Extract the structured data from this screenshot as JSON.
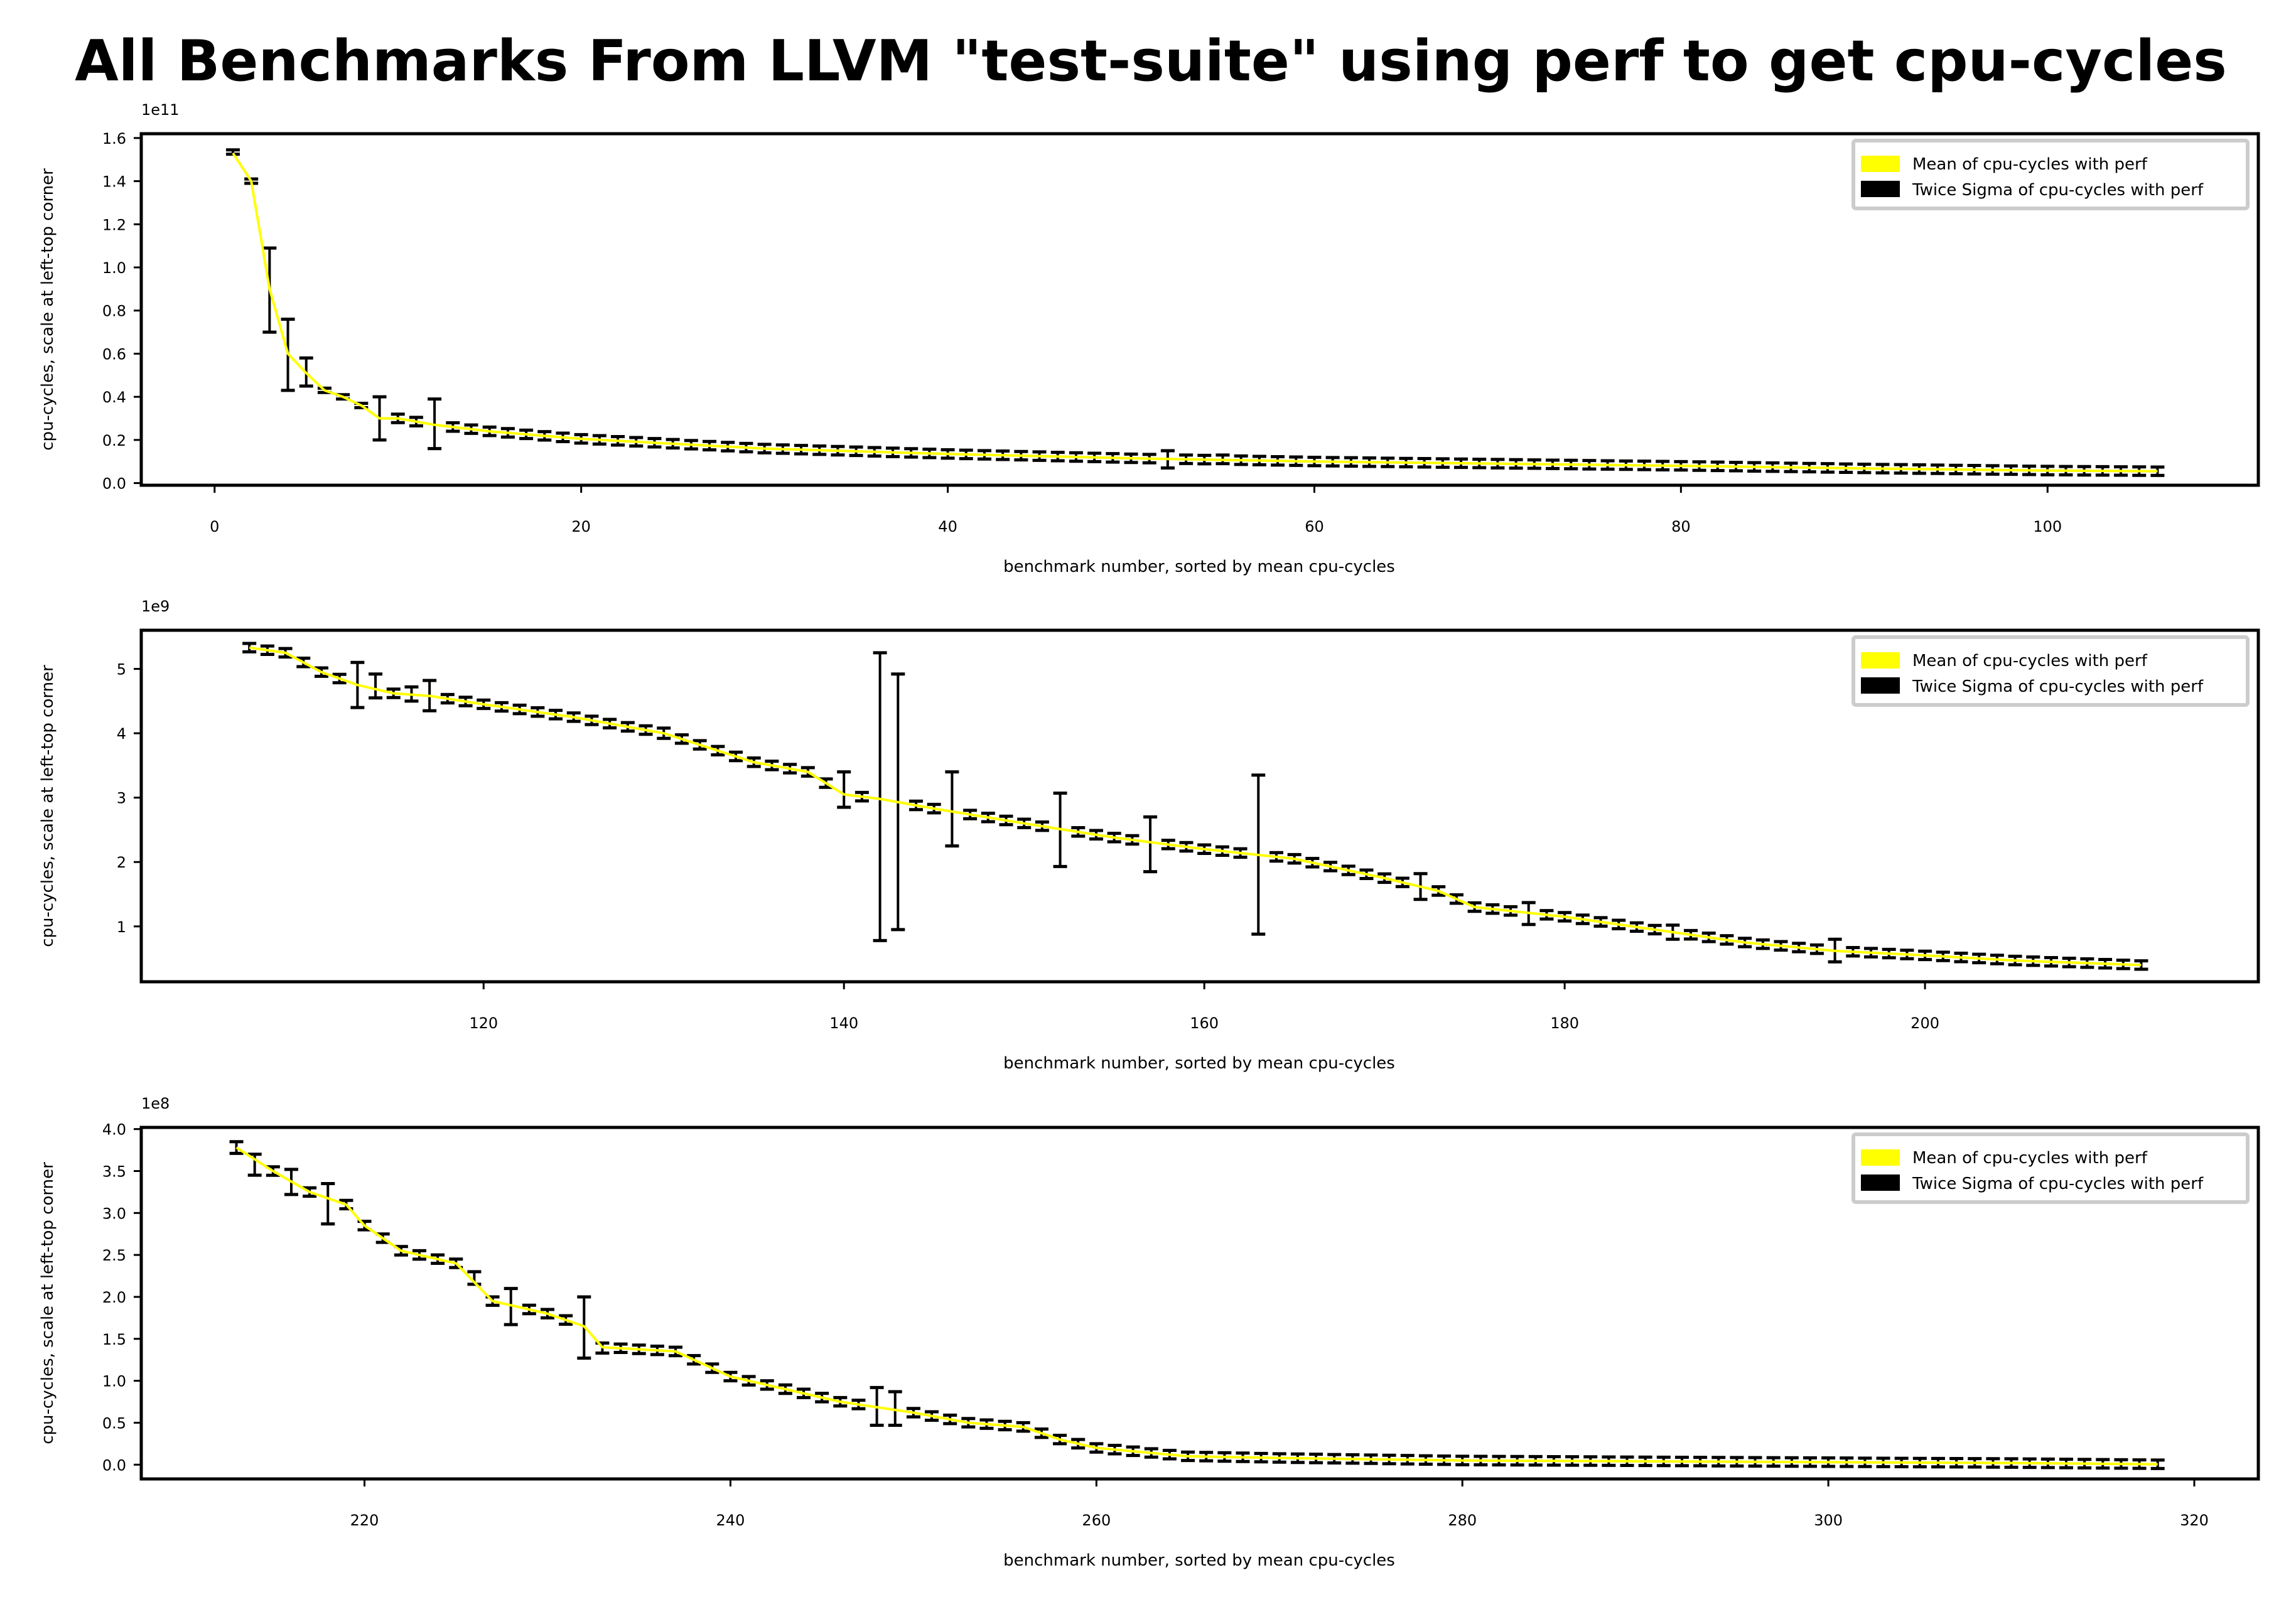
{
  "chart_data": {
    "type": "line",
    "title": "All Benchmarks From LLVM \"test-suite\" using perf to get cpu-cycles",
    "colors": {
      "mean": "#ffff00",
      "sigma": "#000000",
      "frame": "#000000",
      "legend_border": "#cccccc"
    },
    "panels": [
      {
        "xlabel": "benchmark number, sorted by mean cpu-cycles",
        "ylabel": "cpu-cycles, scale at left-top corner",
        "offset_label": "1e11",
        "xlim": [
          -4,
          111.5
        ],
        "ylim": [
          -0.01,
          1.62
        ],
        "xticks": [
          0,
          20,
          40,
          60,
          80,
          100
        ],
        "xtick_labels": [
          "0",
          "20",
          "40",
          "60",
          "80",
          "100"
        ],
        "yticks": [
          0.0,
          0.2,
          0.4,
          0.6,
          0.8,
          1.0,
          1.2,
          1.4,
          1.6
        ],
        "ytick_labels": [
          "0.0",
          "0.2",
          "0.4",
          "0.6",
          "0.8",
          "1.0",
          "1.2",
          "1.4",
          "1.6"
        ],
        "legend": {
          "placement": "top-right",
          "entries": [
            "Mean of cpu-cycles with perf",
            "Twice Sigma of cpu-cycles with perf"
          ]
        },
        "mean_anchors": [
          [
            1,
            1.53
          ],
          [
            2,
            1.4
          ],
          [
            3,
            0.9
          ],
          [
            4,
            0.6
          ],
          [
            5,
            0.51
          ],
          [
            6,
            0.43
          ],
          [
            7,
            0.4
          ],
          [
            8,
            0.36
          ],
          [
            9,
            0.3
          ],
          [
            10,
            0.3
          ],
          [
            12,
            0.27
          ],
          [
            15,
            0.24
          ],
          [
            20,
            0.205
          ],
          [
            30,
            0.16
          ],
          [
            40,
            0.135
          ],
          [
            50,
            0.115
          ],
          [
            60,
            0.1
          ],
          [
            70,
            0.09
          ],
          [
            80,
            0.08
          ],
          [
            90,
            0.068
          ],
          [
            100,
            0.058
          ],
          [
            106,
            0.055
          ]
        ],
        "sigma": [
          [
            1,
            1.545,
            1.525
          ],
          [
            2,
            1.41,
            1.39
          ],
          [
            3,
            1.09,
            0.7
          ],
          [
            4,
            0.76,
            0.43
          ],
          [
            5,
            0.58,
            0.45
          ],
          [
            6,
            0.44,
            0.42
          ],
          [
            7,
            0.41,
            0.39
          ],
          [
            8,
            0.37,
            0.35
          ],
          [
            9,
            0.4,
            0.2
          ],
          [
            12,
            0.39,
            0.16
          ],
          [
            52,
            0.15,
            0.07
          ],
          [
            55,
            0.13,
            0.09
          ]
        ]
      },
      {
        "xlabel": "benchmark number, sorted by mean cpu-cycles",
        "ylabel": "cpu-cycles, scale at left-top corner",
        "offset_label": "1e9",
        "xlim": [
          101,
          218.5
        ],
        "ylim": [
          0.14,
          5.6
        ],
        "xticks": [
          120,
          140,
          160,
          180,
          200
        ],
        "xtick_labels": [
          "120",
          "140",
          "160",
          "180",
          "200"
        ],
        "yticks": [
          1,
          2,
          3,
          4,
          5
        ],
        "ytick_labels": [
          "1",
          "2",
          "3",
          "4",
          "5"
        ],
        "legend": {
          "placement": "top-right",
          "entries": [
            "Mean of cpu-cycles with perf",
            "Twice Sigma of cpu-cycles with perf"
          ]
        },
        "mean_anchors": [
          [
            107,
            5.33
          ],
          [
            109,
            5.25
          ],
          [
            111,
            4.95
          ],
          [
            113,
            4.75
          ],
          [
            115,
            4.62
          ],
          [
            117,
            4.58
          ],
          [
            120,
            4.45
          ],
          [
            125,
            4.25
          ],
          [
            130,
            4.0
          ],
          [
            135,
            3.55
          ],
          [
            138,
            3.4
          ],
          [
            140,
            3.05
          ],
          [
            142,
            2.98
          ],
          [
            145,
            2.83
          ],
          [
            150,
            2.6
          ],
          [
            155,
            2.38
          ],
          [
            160,
            2.2
          ],
          [
            165,
            2.05
          ],
          [
            170,
            1.75
          ],
          [
            173,
            1.55
          ],
          [
            175,
            1.3
          ],
          [
            180,
            1.15
          ],
          [
            185,
            0.95
          ],
          [
            190,
            0.75
          ],
          [
            195,
            0.62
          ],
          [
            200,
            0.55
          ],
          [
            205,
            0.47
          ],
          [
            212,
            0.4
          ]
        ],
        "sigma": [
          [
            113,
            5.1,
            4.4
          ],
          [
            114,
            4.92,
            4.55
          ],
          [
            116,
            4.72,
            4.5
          ],
          [
            117,
            4.82,
            4.35
          ],
          [
            130,
            4.08,
            3.92
          ],
          [
            140,
            3.4,
            2.85
          ],
          [
            142,
            5.25,
            0.78
          ],
          [
            143,
            4.92,
            0.95
          ],
          [
            146,
            3.4,
            2.25
          ],
          [
            152,
            3.07,
            1.93
          ],
          [
            157,
            2.7,
            1.85
          ],
          [
            163,
            3.35,
            0.88
          ],
          [
            172,
            1.82,
            1.42
          ],
          [
            178,
            1.37,
            1.03
          ],
          [
            186,
            1.02,
            0.8
          ],
          [
            195,
            0.8,
            0.45
          ]
        ]
      },
      {
        "xlabel": "benchmark number, sorted by mean cpu-cycles",
        "ylabel": "cpu-cycles, scale at left-top corner",
        "offset_label": "1e8",
        "xlim": [
          207.8,
          323.5
        ],
        "ylim": [
          -0.17,
          4.02
        ],
        "xticks": [
          220,
          240,
          260,
          280,
          300,
          320
        ],
        "xtick_labels": [
          "220",
          "240",
          "260",
          "280",
          "300",
          "320"
        ],
        "yticks": [
          0.0,
          0.5,
          1.0,
          1.5,
          2.0,
          2.5,
          3.0,
          3.5,
          4.0
        ],
        "ytick_labels": [
          "0.0",
          "0.5",
          "1.0",
          "1.5",
          "2.0",
          "2.5",
          "3.0",
          "3.5",
          "4.0"
        ],
        "legend": {
          "placement": "top-right",
          "entries": [
            "Mean of cpu-cycles with perf",
            "Twice Sigma of cpu-cycles with perf"
          ]
        },
        "mean_anchors": [
          [
            213,
            3.78
          ],
          [
            215,
            3.5
          ],
          [
            217,
            3.25
          ],
          [
            219,
            3.1
          ],
          [
            220,
            2.85
          ],
          [
            222,
            2.55
          ],
          [
            225,
            2.4
          ],
          [
            227,
            1.95
          ],
          [
            230,
            1.8
          ],
          [
            232,
            1.65
          ],
          [
            233,
            1.4
          ],
          [
            237,
            1.35
          ],
          [
            240,
            1.05
          ],
          [
            243,
            0.9
          ],
          [
            246,
            0.75
          ],
          [
            250,
            0.62
          ],
          [
            253,
            0.5
          ],
          [
            256,
            0.45
          ],
          [
            258,
            0.3
          ],
          [
            260,
            0.2
          ],
          [
            265,
            0.1
          ],
          [
            270,
            0.08
          ],
          [
            280,
            0.05
          ],
          [
            290,
            0.04
          ],
          [
            300,
            0.03
          ],
          [
            310,
            0.02
          ],
          [
            318,
            0.005
          ]
        ],
        "sigma": [
          [
            213,
            3.85,
            3.71
          ],
          [
            214,
            3.7,
            3.45
          ],
          [
            216,
            3.52,
            3.22
          ],
          [
            218,
            3.35,
            2.87
          ],
          [
            226,
            2.3,
            2.15
          ],
          [
            228,
            2.1,
            1.67
          ],
          [
            232,
            2.0,
            1.27
          ],
          [
            233,
            1.45,
            1.33
          ],
          [
            248,
            0.92,
            0.47
          ],
          [
            249,
            0.87,
            0.47
          ]
        ]
      }
    ]
  }
}
